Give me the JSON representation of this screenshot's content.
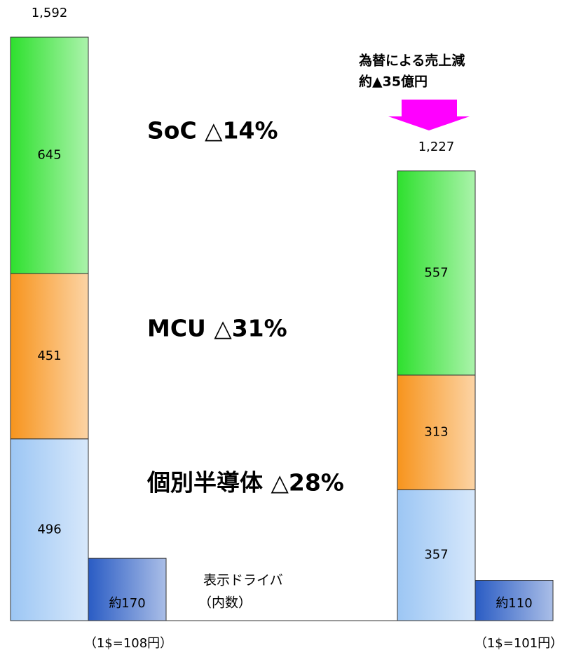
{
  "chart_data": {
    "type": "stacked_bar",
    "categories": [
      "（1$=108円）",
      "（1$=101円）"
    ],
    "series": [
      {
        "color": "#9cc6f4",
        "values": [
          496,
          357
        ]
      },
      {
        "color": "#f7941d",
        "values": [
          451,
          313
        ]
      },
      {
        "color": "#2ee02e",
        "values": [
          645,
          557
        ]
      }
    ],
    "totals": [
      1592,
      1227
    ],
    "total_labels": [
      "1,592",
      "1,227"
    ],
    "display_driver": {
      "color": "#2a5cc4",
      "values": [
        170,
        110
      ],
      "value_labels": [
        "約170",
        "約110"
      ]
    },
    "annotations": [
      "SoC △14%",
      "MCU △31%",
      "個別半導体 △28%",
      "為替による売上減",
      "約▲35億円",
      "表示ドライバ",
      "（内数）"
    ]
  }
}
